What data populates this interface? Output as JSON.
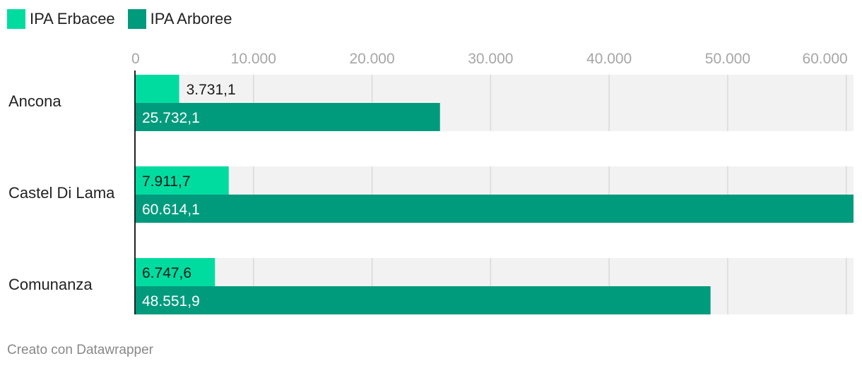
{
  "legend": [
    {
      "label": "IPA Erbacee",
      "color": "#00dca0"
    },
    {
      "label": "IPA Arboree",
      "color": "#009b7d"
    }
  ],
  "chart_data": {
    "type": "bar",
    "orientation": "horizontal",
    "categories": [
      "Ancona",
      "Castel Di Lama",
      "Comunanza"
    ],
    "series": [
      {
        "name": "IPA Erbacee",
        "values": [
          3731.1,
          7911.7,
          6747.6
        ],
        "labels": [
          "3.731,1",
          "7.911,7",
          "6.747,6"
        ],
        "color": "#00dca0"
      },
      {
        "name": "IPA Arboree",
        "values": [
          25732.1,
          60614.1,
          48551.9
        ],
        "labels": [
          "25.732,1",
          "60.614,1",
          "48.551,9"
        ],
        "color": "#009b7d"
      }
    ],
    "ticks": [
      0,
      10000,
      20000,
      30000,
      40000,
      50000,
      60000
    ],
    "tick_labels": [
      "0",
      "10.000",
      "20.000",
      "30.000",
      "40.000",
      "50.000",
      "60.000"
    ],
    "xlim": [
      0,
      60614.1
    ],
    "grid": true,
    "legend_position": "top-left"
  },
  "footer": "Creato con Datawrapper"
}
